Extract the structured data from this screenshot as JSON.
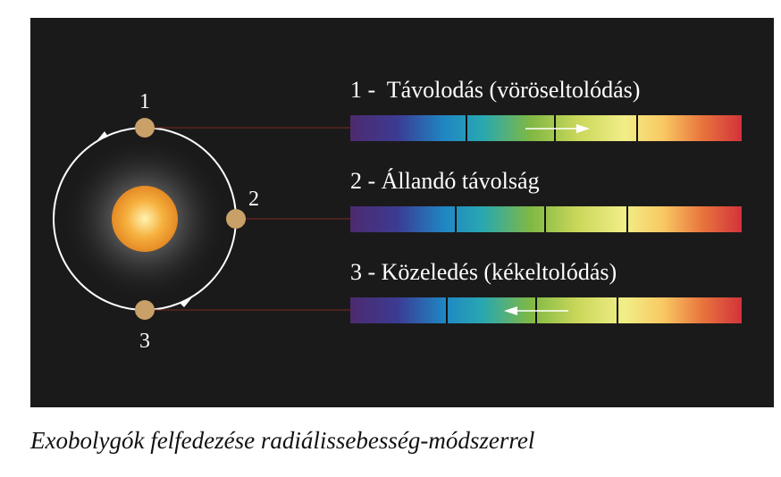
{
  "colors": {
    "background": "#1b1a1a",
    "star": "#f2a93b",
    "planet": "#c9a067",
    "orbit": "#ffffff",
    "connector": "#7a2a22"
  },
  "planets": [
    {
      "number": "1",
      "label": "1 -  Távolodás (vöröseltolódás)",
      "arrow": "right"
    },
    {
      "number": "2",
      "label": "2 - Állandó távolság",
      "arrow": "none"
    },
    {
      "number": "3",
      "label": "3 - Közeledés (kékeltolódás)",
      "arrow": "left"
    }
  ],
  "spectrum_line_shift": [
    "redshift",
    "none",
    "blueshift"
  ],
  "caption": "Exobolygók felfedezése radiálissebesség-módszerrel"
}
